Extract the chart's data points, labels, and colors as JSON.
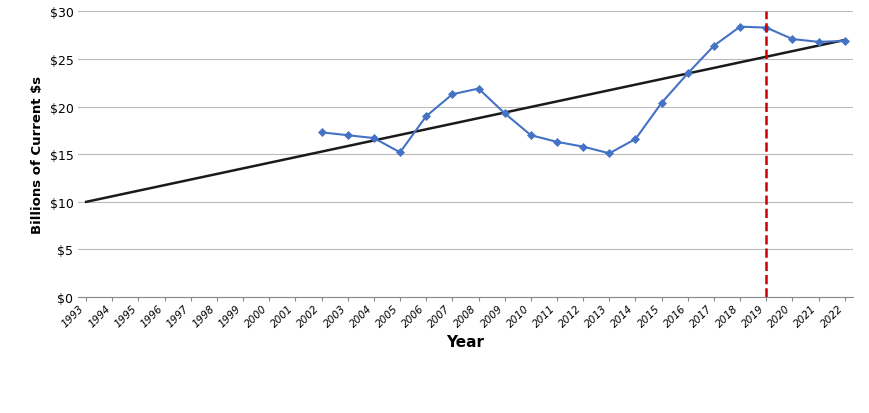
{
  "years": [
    2002,
    2003,
    2004,
    2005,
    2006,
    2007,
    2008,
    2009,
    2010,
    2011,
    2012,
    2013,
    2014,
    2015,
    2016,
    2017,
    2018,
    2019,
    2020,
    2021,
    2022
  ],
  "values": [
    17.3,
    17.0,
    16.7,
    15.2,
    19.0,
    21.3,
    21.9,
    19.3,
    17.0,
    16.3,
    15.8,
    15.1,
    16.6,
    20.4,
    23.5,
    26.4,
    28.4,
    28.3,
    27.1,
    26.8,
    26.9
  ],
  "trend_x": [
    1993,
    2022
  ],
  "trend_y": [
    10.0,
    27.0
  ],
  "line_color": "#4472C4",
  "marker_color": "#4472C4",
  "trend_color": "#1a1a1a",
  "vline_x": 2019,
  "vline_color": "#CC0000",
  "xlim_min": 1993,
  "xlim_max": 2022,
  "ylim_min": 0,
  "ylim_max": 30,
  "yticks": [
    0,
    5,
    10,
    15,
    20,
    25,
    30
  ],
  "ylabel": "Billions of Current $s",
  "xlabel": "Year",
  "bg_color": "#ffffff",
  "grid_color": "#bbbbbb",
  "all_years": [
    1993,
    1994,
    1995,
    1996,
    1997,
    1998,
    1999,
    2000,
    2001,
    2002,
    2003,
    2004,
    2005,
    2006,
    2007,
    2008,
    2009,
    2010,
    2011,
    2012,
    2013,
    2014,
    2015,
    2016,
    2017,
    2018,
    2019,
    2020,
    2021,
    2022
  ]
}
